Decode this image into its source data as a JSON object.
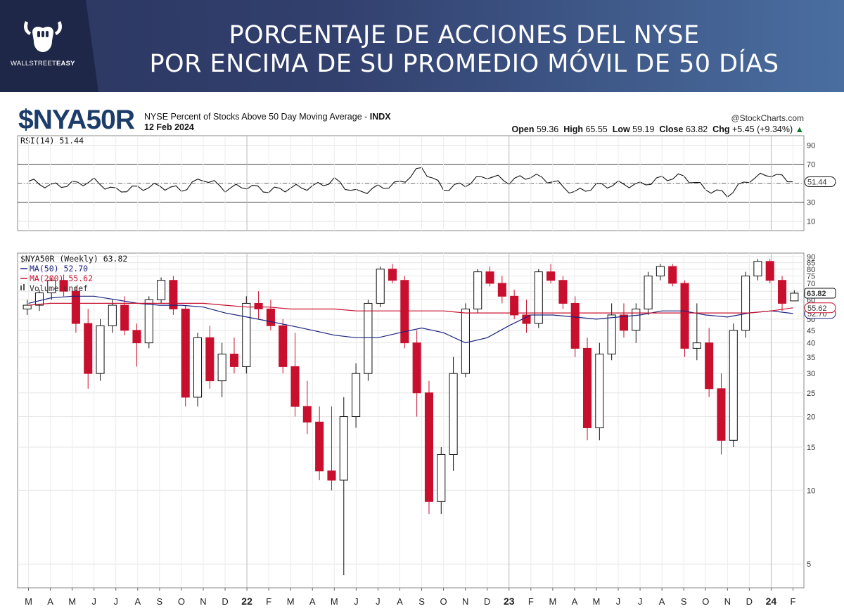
{
  "banner": {
    "title_line1": "PORCENTAJE DE ACCIONES DEL NYSE",
    "title_line2": "POR ENCIMA DE SU PROMEDIO MÓVIL DE 50 DÍAS",
    "logo_word1": "WALLSTREET",
    "logo_word2": "EASY"
  },
  "header": {
    "symbol": "$NYA50R",
    "description": "NYSE Percent of Stocks Above 50 Day Moving Average - ",
    "exchange": "INDX",
    "date": "12 Feb 2024",
    "watermark": "@StockCharts.com",
    "open_label": "Open",
    "open": "59.36",
    "high_label": "High",
    "high": "65.55",
    "low_label": "Low",
    "low": "59.19",
    "close_label": "Close",
    "close": "63.82",
    "chg_label": "Chg",
    "chg": "+5.45 (+9.34%)",
    "chg_arrow": "▲"
  },
  "chart_data": [
    {
      "type": "line",
      "title": "RSI(14) 51.44",
      "ylim": [
        0,
        100
      ],
      "y_ticks": [
        10,
        30,
        50,
        70,
        90
      ],
      "reference_lines": [
        30,
        50,
        70
      ],
      "last_value_label": "51.44",
      "x": [
        "2021-03",
        "2021-04",
        "2021-05",
        "2021-06",
        "2021-07",
        "2021-08",
        "2021-09",
        "2021-10",
        "2021-11",
        "2021-12",
        "2022-01",
        "2022-02",
        "2022-03",
        "2022-04",
        "2022-05",
        "2022-06",
        "2022-07",
        "2022-08",
        "2022-09",
        "2022-10",
        "2022-11",
        "2022-12",
        "2023-01",
        "2023-02",
        "2023-03",
        "2023-04",
        "2023-05",
        "2023-06",
        "2023-07",
        "2023-08",
        "2023-09",
        "2023-10",
        "2023-11",
        "2023-12",
        "2024-01",
        "2024-02"
      ],
      "values": [
        52,
        47,
        49,
        52,
        42,
        45,
        47,
        43,
        55,
        44,
        47,
        42,
        45,
        46,
        53,
        40,
        45,
        50,
        66,
        44,
        49,
        58,
        52,
        58,
        52,
        40,
        47,
        49,
        48,
        55,
        57,
        44,
        38,
        54,
        60,
        51.44
      ]
    },
    {
      "type": "candlestick",
      "title": "$NYA50R (Weekly) 63.82",
      "y_scale": "log",
      "ylim": [
        4,
        93
      ],
      "y_ticks": [
        5,
        10,
        15,
        20,
        25,
        30,
        35,
        40,
        45,
        50,
        60,
        65,
        70,
        75,
        80,
        85,
        90
      ],
      "x_labels": [
        "M",
        "A",
        "M",
        "J",
        "J",
        "A",
        "S",
        "O",
        "N",
        "D",
        "22",
        "F",
        "M",
        "A",
        "M",
        "J",
        "J",
        "A",
        "S",
        "O",
        "N",
        "D",
        "23",
        "F",
        "M",
        "A",
        "M",
        "J",
        "J",
        "A",
        "S",
        "O",
        "N",
        "D",
        "24",
        "F"
      ],
      "bold_x_labels": [
        "22",
        "23",
        "24"
      ],
      "series": [
        {
          "name": "MA(50) 52.70",
          "color": "#1a237e",
          "last_value_label": "52.70",
          "values": [
            58,
            61,
            62,
            62,
            60,
            58,
            57,
            57,
            56,
            53,
            51,
            49,
            47,
            45,
            43,
            42,
            42,
            44,
            46,
            44,
            40,
            42,
            47,
            52,
            52,
            51,
            50,
            51,
            52,
            54,
            54,
            52,
            51,
            53,
            54,
            52.7
          ]
        },
        {
          "name": "MA(200) 55.62",
          "color": "#c8102e",
          "last_value_label": "55.62",
          "values": [
            57,
            58,
            58,
            58,
            58,
            58,
            58,
            58,
            58,
            57,
            56,
            56,
            55,
            55,
            55,
            54,
            54,
            54,
            54,
            54,
            53,
            53,
            53,
            53,
            53,
            53,
            53,
            53,
            53,
            53,
            53,
            53,
            53,
            53,
            54,
            55.62
          ]
        },
        {
          "name": "Volume undef",
          "color": "#555555"
        }
      ],
      "candles": [
        {
          "o": 55,
          "h": 60,
          "l": 52,
          "c": 57
        },
        {
          "o": 57,
          "h": 66,
          "l": 54,
          "c": 64
        },
        {
          "o": 64,
          "h": 74,
          "l": 60,
          "c": 72
        },
        {
          "o": 72,
          "h": 76,
          "l": 62,
          "c": 65
        },
        {
          "o": 65,
          "h": 68,
          "l": 44,
          "c": 48
        },
        {
          "o": 48,
          "h": 55,
          "l": 26,
          "c": 30
        },
        {
          "o": 30,
          "h": 50,
          "l": 28,
          "c": 47
        },
        {
          "o": 47,
          "h": 60,
          "l": 44,
          "c": 57
        },
        {
          "o": 57,
          "h": 62,
          "l": 43,
          "c": 45
        },
        {
          "o": 45,
          "h": 48,
          "l": 32,
          "c": 40
        },
        {
          "o": 40,
          "h": 62,
          "l": 38,
          "c": 60
        },
        {
          "o": 60,
          "h": 74,
          "l": 58,
          "c": 72
        },
        {
          "o": 72,
          "h": 75,
          "l": 52,
          "c": 55
        },
        {
          "o": 55,
          "h": 57,
          "l": 22,
          "c": 24
        },
        {
          "o": 24,
          "h": 44,
          "l": 22,
          "c": 42
        },
        {
          "o": 42,
          "h": 47,
          "l": 26,
          "c": 28
        },
        {
          "o": 28,
          "h": 40,
          "l": 24,
          "c": 36
        },
        {
          "o": 36,
          "h": 42,
          "l": 30,
          "c": 32
        },
        {
          "o": 32,
          "h": 62,
          "l": 30,
          "c": 58
        },
        {
          "o": 58,
          "h": 65,
          "l": 50,
          "c": 55
        },
        {
          "o": 55,
          "h": 60,
          "l": 45,
          "c": 47
        },
        {
          "o": 47,
          "h": 50,
          "l": 30,
          "c": 32
        },
        {
          "o": 32,
          "h": 44,
          "l": 20,
          "c": 22
        },
        {
          "o": 22,
          "h": 28,
          "l": 17,
          "c": 19
        },
        {
          "o": 19,
          "h": 22,
          "l": 11,
          "c": 12
        },
        {
          "o": 12,
          "h": 22,
          "l": 10,
          "c": 11
        },
        {
          "o": 11,
          "h": 24,
          "l": 4.5,
          "c": 20
        },
        {
          "o": 20,
          "h": 33,
          "l": 18,
          "c": 30
        },
        {
          "o": 30,
          "h": 60,
          "l": 28,
          "c": 58
        },
        {
          "o": 58,
          "h": 82,
          "l": 56,
          "c": 80
        },
        {
          "o": 80,
          "h": 84,
          "l": 70,
          "c": 72
        },
        {
          "o": 72,
          "h": 75,
          "l": 38,
          "c": 40
        },
        {
          "o": 40,
          "h": 45,
          "l": 20,
          "c": 25
        },
        {
          "o": 25,
          "h": 28,
          "l": 8,
          "c": 9
        },
        {
          "o": 9,
          "h": 15,
          "l": 8,
          "c": 14
        },
        {
          "o": 14,
          "h": 35,
          "l": 12,
          "c": 30
        },
        {
          "o": 30,
          "h": 58,
          "l": 29,
          "c": 55
        },
        {
          "o": 55,
          "h": 80,
          "l": 53,
          "c": 78
        },
        {
          "o": 78,
          "h": 82,
          "l": 68,
          "c": 70
        },
        {
          "o": 70,
          "h": 75,
          "l": 58,
          "c": 62
        },
        {
          "o": 62,
          "h": 66,
          "l": 50,
          "c": 52
        },
        {
          "o": 52,
          "h": 60,
          "l": 44,
          "c": 48
        },
        {
          "o": 48,
          "h": 80,
          "l": 46,
          "c": 78
        },
        {
          "o": 78,
          "h": 84,
          "l": 70,
          "c": 72
        },
        {
          "o": 72,
          "h": 75,
          "l": 55,
          "c": 58
        },
        {
          "o": 58,
          "h": 62,
          "l": 35,
          "c": 38
        },
        {
          "o": 38,
          "h": 42,
          "l": 16,
          "c": 18
        },
        {
          "o": 18,
          "h": 40,
          "l": 16,
          "c": 36
        },
        {
          "o": 36,
          "h": 58,
          "l": 34,
          "c": 52
        },
        {
          "o": 52,
          "h": 58,
          "l": 42,
          "c": 45
        },
        {
          "o": 45,
          "h": 58,
          "l": 40,
          "c": 55
        },
        {
          "o": 55,
          "h": 78,
          "l": 52,
          "c": 75
        },
        {
          "o": 75,
          "h": 84,
          "l": 72,
          "c": 82
        },
        {
          "o": 82,
          "h": 84,
          "l": 68,
          "c": 70
        },
        {
          "o": 70,
          "h": 72,
          "l": 35,
          "c": 38
        },
        {
          "o": 38,
          "h": 58,
          "l": 34,
          "c": 40
        },
        {
          "o": 40,
          "h": 46,
          "l": 24,
          "c": 26
        },
        {
          "o": 26,
          "h": 30,
          "l": 14,
          "c": 16
        },
        {
          "o": 16,
          "h": 48,
          "l": 15,
          "c": 45
        },
        {
          "o": 45,
          "h": 78,
          "l": 42,
          "c": 75
        },
        {
          "o": 75,
          "h": 88,
          "l": 72,
          "c": 86
        },
        {
          "o": 86,
          "h": 88,
          "l": 70,
          "c": 72
        },
        {
          "o": 72,
          "h": 75,
          "l": 54,
          "c": 58
        },
        {
          "o": 59.36,
          "h": 65.55,
          "l": 59.19,
          "c": 63.82
        }
      ],
      "last_value_label": "63.82"
    }
  ]
}
